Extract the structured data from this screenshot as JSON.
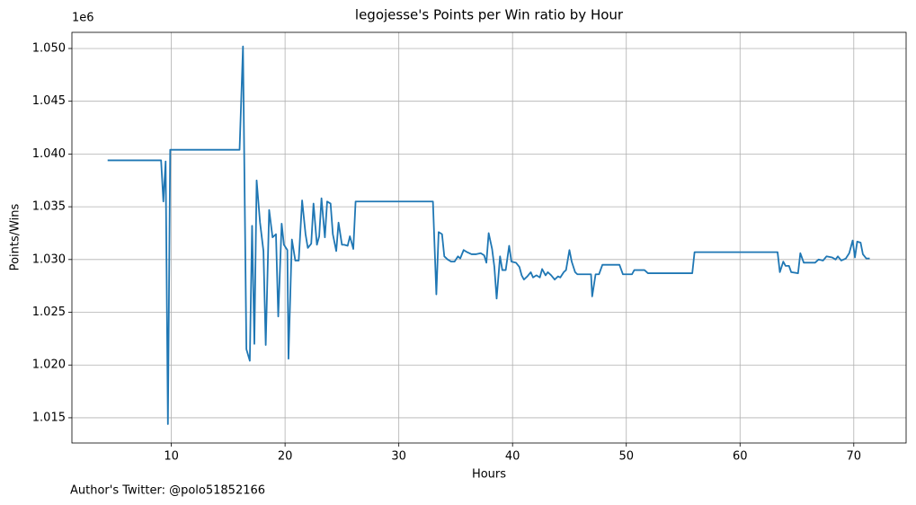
{
  "chart_data": {
    "type": "line",
    "title": "legojesse's Points per Win ratio by Hour",
    "x_label": "Hours",
    "y_label": "Points/Wins",
    "y_offset_label": "1e6",
    "footnote": "Author's Twitter: @polo51852166",
    "color": "#1f77b4",
    "grid": true,
    "xlim": [
      1.26,
      74.6
    ],
    "ylim": [
      1012610,
      1051530
    ],
    "xticks": [
      10,
      20,
      30,
      40,
      50,
      60,
      70
    ],
    "yticks": [
      {
        "value": 1015000,
        "label": "1.015"
      },
      {
        "value": 1020000,
        "label": "1.020"
      },
      {
        "value": 1025000,
        "label": "1.025"
      },
      {
        "value": 1030000,
        "label": "1.030"
      },
      {
        "value": 1035000,
        "label": "1.035"
      },
      {
        "value": 1040000,
        "label": "1.040"
      },
      {
        "value": 1045000,
        "label": "1.045"
      },
      {
        "value": 1050000,
        "label": "1.050"
      }
    ],
    "x": [
      4.4,
      9.1,
      9.3,
      9.5,
      9.7,
      9.9,
      16.0,
      16.3,
      16.6,
      16.9,
      17.1,
      17.3,
      17.5,
      17.8,
      18.1,
      18.3,
      18.6,
      18.9,
      19.2,
      19.4,
      19.7,
      19.9,
      20.2,
      20.3,
      20.6,
      20.9,
      21.2,
      21.5,
      21.8,
      22.0,
      22.3,
      22.5,
      22.8,
      23.0,
      23.2,
      23.5,
      23.7,
      24.0,
      24.2,
      24.5,
      24.7,
      25.0,
      25.2,
      25.5,
      25.7,
      26.0,
      26.2,
      33.0,
      33.3,
      33.5,
      33.8,
      34.0,
      34.3,
      34.6,
      34.9,
      35.2,
      35.4,
      35.7,
      36.0,
      36.4,
      36.8,
      37.2,
      37.5,
      37.7,
      37.9,
      38.2,
      38.4,
      38.6,
      38.9,
      39.1,
      39.4,
      39.7,
      39.9,
      40.3,
      40.6,
      40.8,
      41.0,
      41.3,
      41.6,
      41.8,
      42.1,
      42.4,
      42.6,
      42.9,
      43.1,
      43.4,
      43.7,
      44.0,
      44.2,
      44.5,
      44.7,
      45.0,
      45.2,
      45.5,
      45.7,
      46.2,
      46.9,
      47.0,
      47.3,
      47.6,
      47.9,
      48.5,
      49.4,
      49.7,
      50.5,
      50.7,
      51.6,
      51.9,
      55.8,
      56.0,
      63.3,
      63.5,
      63.8,
      64.0,
      64.3,
      64.5,
      65.1,
      65.3,
      65.6,
      66.6,
      66.9,
      67.3,
      67.6,
      68.1,
      68.4,
      68.6,
      68.9,
      69.3,
      69.6,
      69.9,
      70.1,
      70.3,
      70.6,
      70.8,
      71.1,
      71.4
    ],
    "values": [
      1039400,
      1039400,
      1035500,
      1039300,
      1014400,
      1040400,
      1040400,
      1050200,
      1021500,
      1020400,
      1033200,
      1022000,
      1037500,
      1033500,
      1030800,
      1021900,
      1034700,
      1032100,
      1032400,
      1024600,
      1033400,
      1031400,
      1030900,
      1020600,
      1031900,
      1029900,
      1029900,
      1035600,
      1032400,
      1031100,
      1031500,
      1035300,
      1031400,
      1032200,
      1035800,
      1032100,
      1035500,
      1035300,
      1032400,
      1030800,
      1033500,
      1031400,
      1031400,
      1031300,
      1032200,
      1031000,
      1035500,
      1035500,
      1026700,
      1032600,
      1032400,
      1030300,
      1030000,
      1029800,
      1029800,
      1030300,
      1030100,
      1030900,
      1030700,
      1030500,
      1030500,
      1030600,
      1030400,
      1029700,
      1032500,
      1031000,
      1029300,
      1026300,
      1030300,
      1029000,
      1029000,
      1031300,
      1029800,
      1029700,
      1029300,
      1028500,
      1028100,
      1028400,
      1028800,
      1028300,
      1028500,
      1028300,
      1029100,
      1028500,
      1028800,
      1028500,
      1028100,
      1028400,
      1028300,
      1028800,
      1029000,
      1030900,
      1029800,
      1028800,
      1028600,
      1028600,
      1028600,
      1026500,
      1028600,
      1028600,
      1029500,
      1029500,
      1029500,
      1028600,
      1028600,
      1029000,
      1029000,
      1028700,
      1028700,
      1030700,
      1030700,
      1028800,
      1029800,
      1029400,
      1029400,
      1028800,
      1028700,
      1030600,
      1029700,
      1029700,
      1030000,
      1029900,
      1030300,
      1030200,
      1030000,
      1030300,
      1029900,
      1030100,
      1030600,
      1031800,
      1030200,
      1031700,
      1031600,
      1030500,
      1030100,
      1030100
    ]
  }
}
